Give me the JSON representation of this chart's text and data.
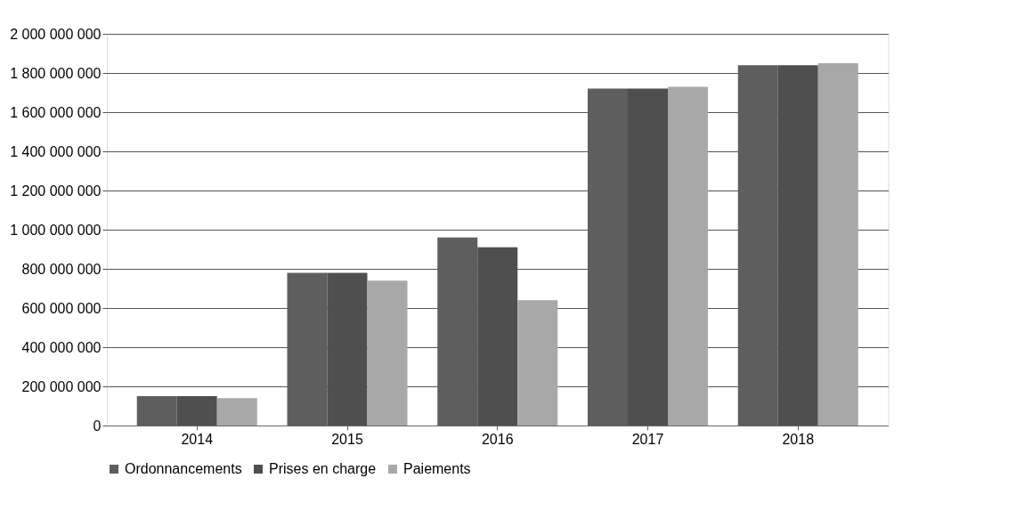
{
  "chart_data": {
    "type": "bar",
    "categories": [
      "2014",
      "2015",
      "2016",
      "2017",
      "2018"
    ],
    "series": [
      {
        "name": "Ordonnancements",
        "color": "#5e5e5e",
        "values": [
          150000000,
          780000000,
          960000000,
          1720000000,
          1840000000
        ]
      },
      {
        "name": "Prises en charge",
        "color": "#4f4f4f",
        "values": [
          150000000,
          780000000,
          910000000,
          1720000000,
          1840000000
        ]
      },
      {
        "name": "Paiements",
        "color": "#a8a8a8",
        "values": [
          140000000,
          740000000,
          640000000,
          1730000000,
          1850000000
        ]
      }
    ],
    "ylim": [
      0,
      2000000000
    ],
    "yticks": [
      0,
      {
        "value": 200000000,
        "label": "200 000 000"
      },
      {
        "value": 400000000,
        "label": "400 000 000"
      },
      {
        "value": 600000000,
        "label": "600 000 000"
      },
      {
        "value": 800000000,
        "label": "800 000 000"
      },
      {
        "value": 1000000000,
        "label": "1 000 000 000"
      },
      {
        "value": 1200000000,
        "label": "1 200 000 000"
      },
      {
        "value": 1400000000,
        "label": "1 400 000 000"
      },
      {
        "value": 1600000000,
        "label": "1 600 000 000"
      },
      {
        "value": 1800000000,
        "label": "1 800 000 000"
      },
      {
        "value": 2000000000,
        "label": "2 000 000 000"
      }
    ],
    "grid": "y",
    "legend": "bottom"
  }
}
